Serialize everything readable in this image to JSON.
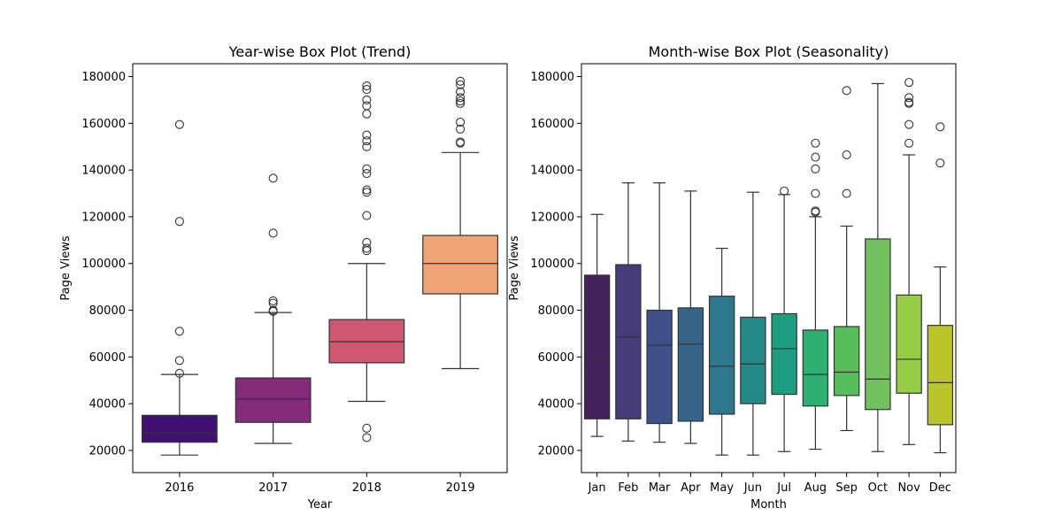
{
  "chart_data": [
    {
      "type": "box",
      "title": "Year-wise Box Plot (Trend)",
      "xlabel": "Year",
      "ylabel": "Page Views",
      "ylim": [
        10500,
        185500
      ],
      "yticks": [
        20000,
        40000,
        60000,
        80000,
        100000,
        120000,
        140000,
        160000,
        180000
      ],
      "categories": [
        "2016",
        "2017",
        "2018",
        "2019"
      ],
      "colors": [
        "#3f0f72",
        "#822c7b",
        "#cf5770",
        "#f0a478"
      ],
      "boxes": [
        {
          "label": "2016",
          "q1": 23500,
          "median": 27500,
          "q3": 35000,
          "whisker_low": 18000,
          "whisker_high": 52500,
          "fliers": [
            53000,
            58500,
            71000,
            118000,
            159500
          ]
        },
        {
          "label": "2017",
          "q1": 32000,
          "median": 42000,
          "q3": 51000,
          "whisker_low": 23000,
          "whisker_high": 79000,
          "fliers": [
            79500,
            80000,
            83000,
            84000,
            113000,
            136500
          ]
        },
        {
          "label": "2018",
          "q1": 57500,
          "median": 66500,
          "q3": 76000,
          "whisker_low": 41000,
          "whisker_high": 100000,
          "fliers": [
            25500,
            29500,
            105500,
            106500,
            109000,
            120500,
            130500,
            131500,
            138500,
            140500,
            150000,
            152500,
            155000,
            164000,
            167500,
            170000,
            174500,
            176000
          ]
        },
        {
          "label": "2019",
          "q1": 87000,
          "median": 100000,
          "q3": 112000,
          "whisker_low": 55000,
          "whisker_high": 147500,
          "fliers": [
            151500,
            152000,
            157500,
            160500,
            168500,
            169500,
            171000,
            173500,
            176500,
            178000
          ]
        }
      ]
    },
    {
      "type": "box",
      "title": "Month-wise Box Plot (Seasonality)",
      "xlabel": "Month",
      "ylabel": "Page Views",
      "ylim": [
        10500,
        185500
      ],
      "yticks": [
        20000,
        40000,
        60000,
        80000,
        100000,
        120000,
        140000,
        160000,
        180000
      ],
      "categories": [
        "Jan",
        "Feb",
        "Mar",
        "Apr",
        "May",
        "Jun",
        "Jul",
        "Aug",
        "Sep",
        "Oct",
        "Nov",
        "Dec"
      ],
      "colors": [
        "#44205f",
        "#473c7a",
        "#3d5188",
        "#35648a",
        "#2d788b",
        "#258a87",
        "#1f9d80",
        "#2db070",
        "#56be5b",
        "#72c160",
        "#96cf45",
        "#bac52b"
      ],
      "boxes": [
        {
          "label": "Jan",
          "q1": 33500,
          "median": 59000,
          "q3": 95000,
          "whisker_low": 26000,
          "whisker_high": 121000,
          "fliers": []
        },
        {
          "label": "Feb",
          "q1": 33500,
          "median": 68500,
          "q3": 99500,
          "whisker_low": 24000,
          "whisker_high": 134500,
          "fliers": []
        },
        {
          "label": "Mar",
          "q1": 31500,
          "median": 65000,
          "q3": 80000,
          "whisker_low": 23500,
          "whisker_high": 134500,
          "fliers": []
        },
        {
          "label": "Apr",
          "q1": 32500,
          "median": 65500,
          "q3": 81000,
          "whisker_low": 23000,
          "whisker_high": 131000,
          "fliers": []
        },
        {
          "label": "May",
          "q1": 35500,
          "median": 56000,
          "q3": 86000,
          "whisker_low": 18000,
          "whisker_high": 106500,
          "fliers": []
        },
        {
          "label": "Jun",
          "q1": 40000,
          "median": 57000,
          "q3": 77000,
          "whisker_low": 18000,
          "whisker_high": 130500,
          "fliers": []
        },
        {
          "label": "Jul",
          "q1": 44000,
          "median": 63500,
          "q3": 78500,
          "whisker_low": 19500,
          "whisker_high": 129500,
          "fliers": [
            131000
          ]
        },
        {
          "label": "Aug",
          "q1": 39000,
          "median": 52500,
          "q3": 71500,
          "whisker_low": 20500,
          "whisker_high": 120000,
          "fliers": [
            122000,
            122500,
            130000,
            140500,
            145500,
            151500
          ]
        },
        {
          "label": "Sep",
          "q1": 43500,
          "median": 53500,
          "q3": 73000,
          "whisker_low": 28500,
          "whisker_high": 116000,
          "fliers": [
            130000,
            146500,
            174000
          ]
        },
        {
          "label": "Oct",
          "q1": 37500,
          "median": 50500,
          "q3": 110500,
          "whisker_low": 19500,
          "whisker_high": 177000,
          "fliers": []
        },
        {
          "label": "Nov",
          "q1": 44500,
          "median": 59000,
          "q3": 86500,
          "whisker_low": 22500,
          "whisker_high": 146500,
          "fliers": [
            151500,
            159500,
            168500,
            169000,
            171000,
            177500
          ]
        },
        {
          "label": "Dec",
          "q1": 31000,
          "median": 49000,
          "q3": 73500,
          "whisker_low": 19000,
          "whisker_high": 98500,
          "fliers": [
            143000,
            158500
          ]
        }
      ]
    }
  ]
}
